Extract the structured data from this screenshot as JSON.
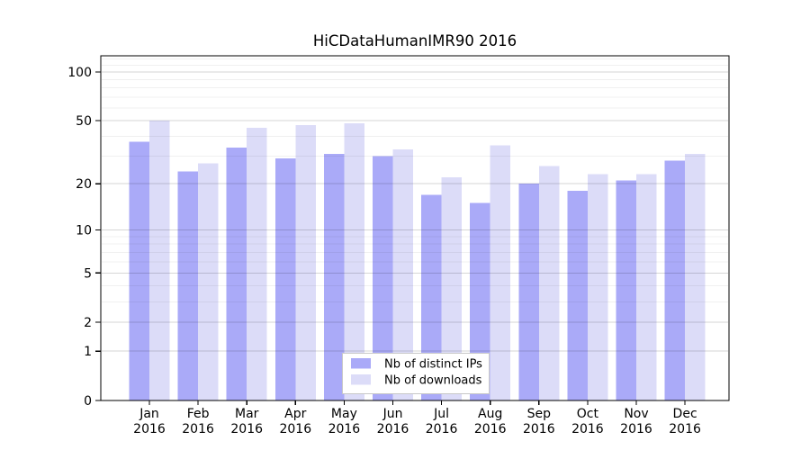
{
  "chart_data": {
    "type": "bar",
    "title": "HiCDataHumanIMR90 2016",
    "categories": [
      "Jan",
      "Feb",
      "Mar",
      "Apr",
      "May",
      "Jun",
      "Jul",
      "Aug",
      "Sep",
      "Oct",
      "Nov",
      "Dec"
    ],
    "category_year": "2016",
    "series": [
      {
        "name": "Nb of distinct IPs",
        "color": "#aaaaf8",
        "values": [
          37,
          24,
          34,
          29,
          31,
          30,
          17,
          15,
          20,
          18,
          21,
          28
        ]
      },
      {
        "name": "Nb of downloads",
        "color": "#dcdcf8",
        "values": [
          50,
          27,
          45,
          47,
          48,
          33,
          22,
          35,
          26,
          23,
          23,
          31
        ]
      }
    ],
    "xlabel": "",
    "ylabel": "",
    "yscale": "log1p",
    "ylim": [
      0,
      125
    ],
    "yticks": [
      0,
      1,
      2,
      5,
      10,
      20,
      50,
      100
    ],
    "minor_gridlines": [
      3,
      4,
      6,
      7,
      8,
      9,
      30,
      40,
      60,
      70,
      80,
      90,
      110,
      120
    ],
    "grid": "horizontal",
    "legend_position": "bottom-center",
    "colors": {
      "axis": "#000000",
      "major_grid": "rgba(0,0,0,0.16)",
      "minor_grid": "rgba(0,0,0,0.06)",
      "legend_border": "#c8c8c8",
      "legend_background": "#ffffff"
    }
  }
}
